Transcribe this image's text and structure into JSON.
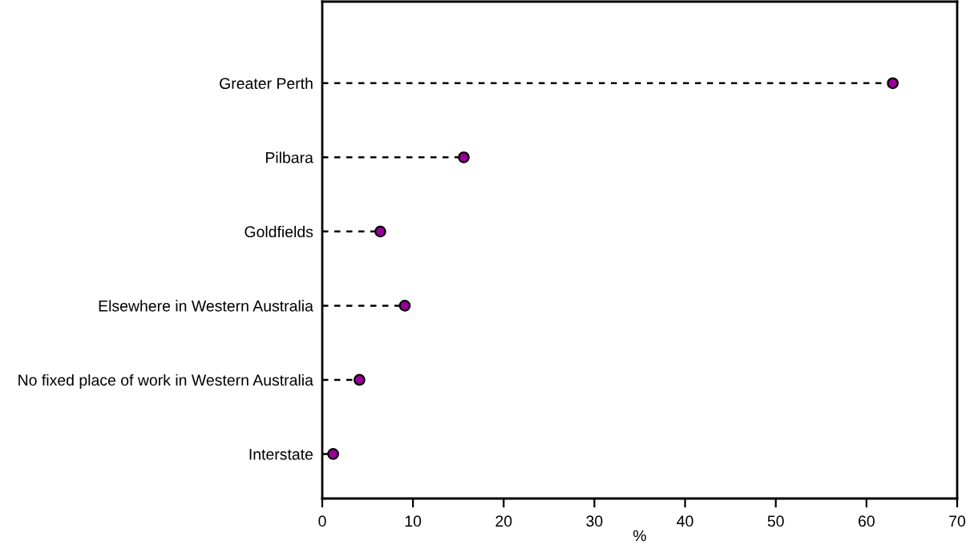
{
  "chart_data": {
    "type": "lollipop",
    "orientation": "horizontal",
    "xlabel": "%",
    "categories": [
      "Greater Perth",
      "Pilbara",
      "Goldfields",
      "Elsewhere in Western Australia",
      "No fixed place of work in Western Australia",
      "Interstate"
    ],
    "values": [
      62.9,
      15.6,
      6.4,
      9.1,
      4.1,
      1.2
    ],
    "color": "#990099",
    "marker": "circle",
    "line_style": "dashed",
    "xlim": [
      0,
      70
    ],
    "xticks": [
      0,
      10,
      20,
      30,
      40,
      50,
      60,
      70
    ],
    "grid": false
  }
}
